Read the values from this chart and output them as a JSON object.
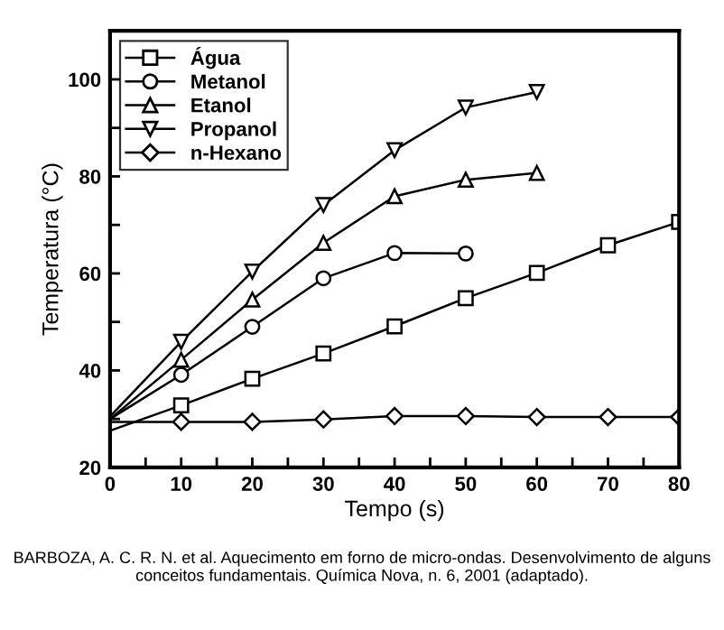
{
  "chart_data": {
    "type": "line",
    "xlabel": "Tempo (s)",
    "ylabel": "Temperatura (°C)",
    "xlim": [
      0,
      80
    ],
    "ylim": [
      20,
      110
    ],
    "xticks": [
      0,
      {
        "value": 5,
        "label": null
      },
      10,
      {
        "value": 15,
        "label": null
      },
      20,
      {
        "value": 25,
        "label": null
      },
      30,
      {
        "value": 35,
        "label": null
      },
      40,
      {
        "value": 45,
        "label": null
      },
      50,
      {
        "value": 55,
        "label": null
      },
      60,
      {
        "value": 65,
        "label": null
      },
      70,
      {
        "value": 75,
        "label": null
      },
      80
    ],
    "yticks": [
      20,
      {
        "value": 30,
        "label": null
      },
      40,
      {
        "value": 50,
        "label": null
      },
      60,
      {
        "value": 70,
        "label": null
      },
      80,
      {
        "value": 90,
        "label": null
      },
      100
    ],
    "grid": false,
    "legend": "top left",
    "line_style": "solid",
    "series": [
      {
        "name": "Água",
        "color": "#000000",
        "marker": "square",
        "x": [
          0,
          10,
          20,
          30,
          40,
          50,
          60,
          70,
          80
        ],
        "values": [
          27.6,
          32.8,
          38.3,
          43.5,
          49.1,
          54.9,
          60.1,
          65.8,
          70.6
        ]
      },
      {
        "name": "Metanol",
        "color": "#000000",
        "marker": "circle",
        "x": [
          0,
          10,
          20,
          30,
          40,
          50
        ],
        "values": [
          30,
          39.1,
          49.0,
          59.0,
          64.2,
          64.1
        ]
      },
      {
        "name": "Etanol",
        "color": "#000000",
        "marker": "triangle",
        "x": [
          0,
          10,
          20,
          30,
          40,
          50,
          60
        ],
        "values": [
          30,
          42.2,
          54.6,
          66.3,
          75.9,
          79.3,
          80.7
        ]
      },
      {
        "name": "Propanol",
        "color": "#000000",
        "marker": "triangle_down",
        "x": [
          0,
          10,
          20,
          30,
          40,
          50,
          60
        ],
        "values": [
          30.5,
          45.9,
          60.4,
          74.1,
          85.4,
          94.2,
          97.4
        ]
      },
      {
        "name": "n-Hexano",
        "color": "#000000",
        "marker": "diamond",
        "x": [
          0,
          10,
          20,
          30,
          40,
          50,
          60,
          70,
          80
        ],
        "values": [
          29.4,
          29.4,
          29.4,
          29.9,
          30.6,
          30.6,
          30.4,
          30.4,
          30.4
        ]
      }
    ],
    "annotations": [
      "BARBOZA, A. C. R. N. et al. Aquecimento em forno de micro-ondas. Desenvolvimento de alguns conceitos fundamentais. Química Nova, n. 6, 2001 (adaptado)."
    ]
  }
}
